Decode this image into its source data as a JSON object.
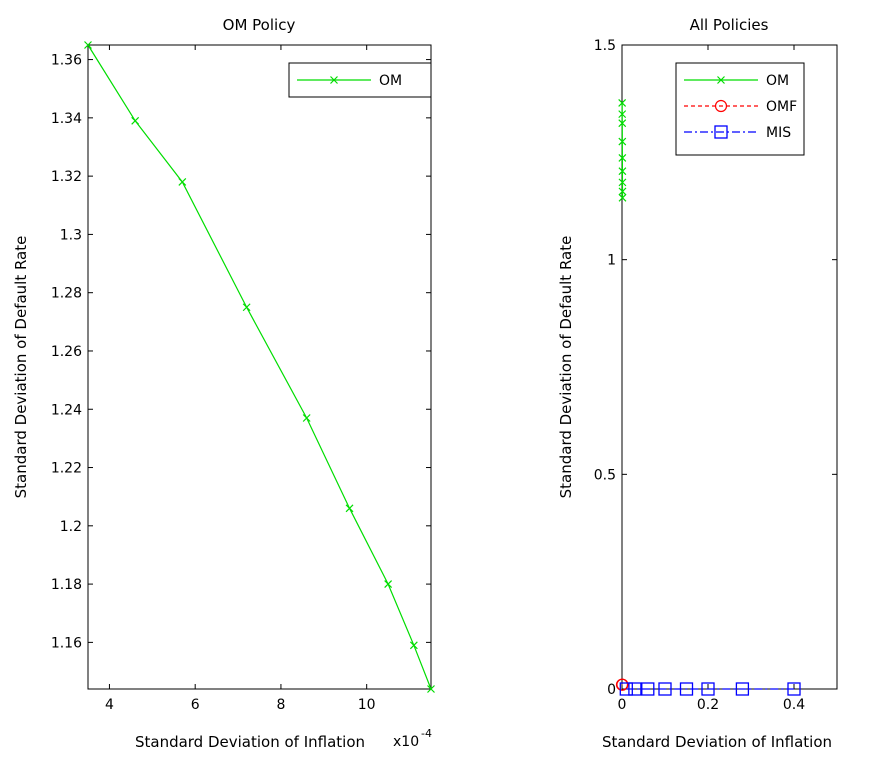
{
  "chart_data": [
    {
      "type": "line",
      "title": "OM Policy",
      "xlabel": "Standard Deviation of Inflation",
      "x_multiplier": "x10^-4",
      "ylabel": "Standard Deviation of Default Rate",
      "xlim": [
        3.5,
        11.5
      ],
      "ylim": [
        1.144,
        1.365
      ],
      "xticks": [
        4,
        6,
        8,
        10
      ],
      "yticks": [
        1.16,
        1.18,
        1.2,
        1.22,
        1.24,
        1.26,
        1.28,
        1.3,
        1.32,
        1.34,
        1.36
      ],
      "grid": false,
      "legend_position": "top-right",
      "series": [
        {
          "name": "OM",
          "color": "#00dd00",
          "marker": "x",
          "linestyle": "solid",
          "x": [
            3.5,
            4.6,
            5.7,
            7.2,
            8.6,
            9.6,
            10.5,
            11.1,
            11.5
          ],
          "y": [
            1.365,
            1.339,
            1.318,
            1.275,
            1.237,
            1.206,
            1.18,
            1.159,
            1.144
          ]
        }
      ]
    },
    {
      "type": "line",
      "title": "All Policies",
      "xlabel": "Standard Deviation of Inflation",
      "ylabel": "Standard Deviation of Default Rate",
      "xlim": [
        0,
        0.5
      ],
      "ylim": [
        0,
        1.5
      ],
      "xticks": [
        0,
        0.2,
        0.4
      ],
      "yticks": [
        0,
        0.5,
        1,
        1.5
      ],
      "grid": false,
      "legend_position": "top-right",
      "series": [
        {
          "name": "OM",
          "color": "#00dd00",
          "marker": "x",
          "linestyle": "solid",
          "x": [
            0.00035,
            0.00046,
            0.00057,
            0.00072,
            0.00086,
            0.00096,
            0.00105,
            0.00111,
            0.00115
          ],
          "y": [
            1.365,
            1.339,
            1.318,
            1.275,
            1.237,
            1.206,
            1.18,
            1.159,
            1.144
          ]
        },
        {
          "name": "OMF",
          "color": "#ff0000",
          "marker": "o",
          "linestyle": "dashed",
          "x": [
            0.0,
            0.001
          ],
          "y": [
            0.01,
            0.01
          ]
        },
        {
          "name": "MIS",
          "color": "#0000ff",
          "marker": "square",
          "linestyle": "dashdot",
          "x": [
            0.01,
            0.03,
            0.06,
            0.1,
            0.15,
            0.2,
            0.28,
            0.4
          ],
          "y": [
            0.0,
            0.0,
            0.0,
            0.0,
            0.0,
            0.0,
            0.0,
            0.0
          ]
        }
      ]
    }
  ]
}
